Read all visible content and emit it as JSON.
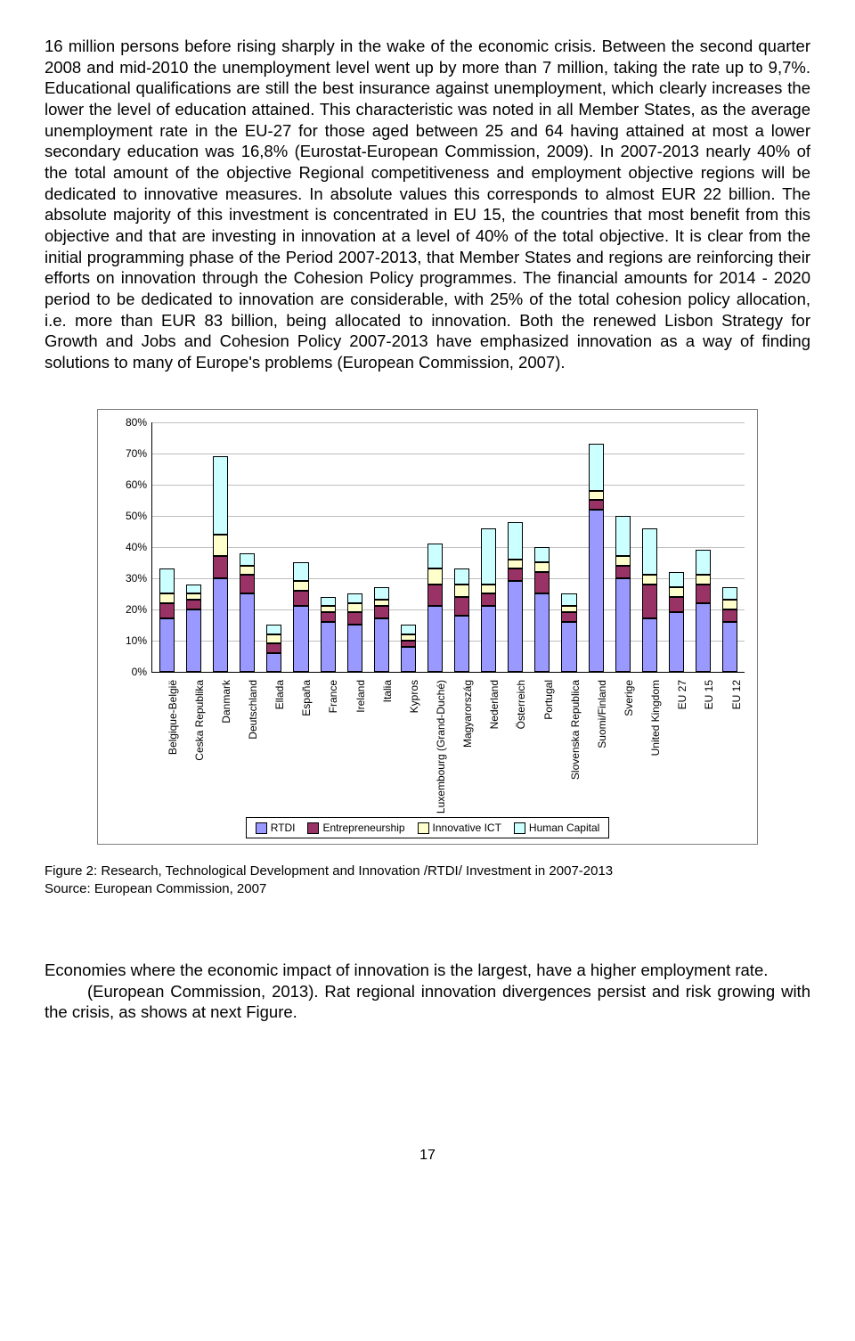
{
  "para1": "16 million persons before rising sharply in the wake of the economic crisis. Between the second quarter 2008 and mid-2010 the unemployment level went up by more than 7 million, taking the rate up to 9,7%. Educational qualifications are still the best insurance against unemployment, which clearly increases the lower the level of education attained. This characteristic was noted in all Member States, as the average unemployment rate in the EU-27 for those aged between 25 and 64 having attained at most a lower secondary education was 16,8% (Eurostat-European Commission, 2009). In 2007-2013 nearly 40% of the total amount of the objective Regional competitiveness and employment objective regions will be dedicated to innovative measures. In absolute values this corresponds to almost EUR 22 billion. The absolute majority of this investment is concentrated in EU 15, the countries that most benefit from this objective and that are investing in innovation at a level of 40% of the total objective. It is clear from the initial programming phase of the Period 2007-2013, that Member States and regions are reinforcing their efforts on innovation through the Cohesion Policy programmes. The financial amounts for 2014 - 2020 period to be dedicated to innovation are considerable, with 25% of the total cohesion policy allocation, i.e. more than EUR 83 billion, being allocated to innovation. Both the renewed Lisbon Strategy for Growth and Jobs and Cohesion Policy 2007-2013 have emphasized innovation as a way of finding solutions to many of Europe's problems (European Commission, 2007).",
  "caption1": "Figure 2: Research, Technological Development and Innovation /RTDI/ Investment in 2007-2013",
  "caption2": "Source: European Commission, 2007",
  "para2a": "Economies where the economic impact of innovation is the largest, have a higher employment rate.",
  "para2b": "(European Commission, 2013). Rat regional innovation divergences persist and risk growing with the crisis, as shows at next Figure.",
  "page_number": "17",
  "chart": {
    "type": "stacked-bar",
    "ymax": 80,
    "ytick_step": 10,
    "y_suffix": "%",
    "background_color": "#ffffff",
    "border_color": "#7f7f7f",
    "axis_color": "#000000",
    "label_fontsize": 12,
    "bar_border": "#000000",
    "series": [
      {
        "name": "RTDI",
        "color": "#9999ff"
      },
      {
        "name": "Entrepreneurship",
        "color": "#993366"
      },
      {
        "name": "Innovative ICT",
        "color": "#ffffcc"
      },
      {
        "name": "Human Capital",
        "color": "#ccffff"
      }
    ],
    "categories": [
      {
        "label": "Belgique-België",
        "values": [
          17,
          5,
          3,
          8
        ]
      },
      {
        "label": "Ceska Republika",
        "values": [
          20,
          3,
          2,
          3
        ]
      },
      {
        "label": "Danmark",
        "values": [
          30,
          7,
          7,
          25
        ]
      },
      {
        "label": "Deutschland",
        "values": [
          25,
          6,
          3,
          4
        ]
      },
      {
        "label": "Ellada",
        "values": [
          6,
          3,
          3,
          3
        ]
      },
      {
        "label": "España",
        "values": [
          21,
          5,
          3,
          6
        ]
      },
      {
        "label": "France",
        "values": [
          16,
          3,
          2,
          3
        ]
      },
      {
        "label": "Ireland",
        "values": [
          15,
          4,
          3,
          3
        ]
      },
      {
        "label": "Italia",
        "values": [
          17,
          4,
          2,
          4
        ]
      },
      {
        "label": "Kypros",
        "values": [
          8,
          2,
          2,
          3
        ]
      },
      {
        "label": "Luxembourg (Grand-Duché)",
        "values": [
          21,
          7,
          5,
          8
        ]
      },
      {
        "label": "Magyarország",
        "values": [
          18,
          6,
          4,
          5
        ]
      },
      {
        "label": "Nederland",
        "values": [
          21,
          4,
          3,
          18
        ]
      },
      {
        "label": "Österreich",
        "values": [
          29,
          4,
          3,
          12
        ]
      },
      {
        "label": "Portugal",
        "values": [
          25,
          7,
          3,
          5
        ]
      },
      {
        "label": "Slovenska Republica",
        "values": [
          16,
          3,
          2,
          4
        ]
      },
      {
        "label": "Suomi/Finland",
        "values": [
          52,
          3,
          3,
          15
        ]
      },
      {
        "label": "Sverige",
        "values": [
          30,
          4,
          3,
          13
        ]
      },
      {
        "label": "United Kingdom",
        "values": [
          17,
          11,
          3,
          15
        ]
      },
      {
        "label": "EU 27",
        "values": [
          19,
          5,
          3,
          5
        ]
      },
      {
        "label": "EU 15",
        "values": [
          22,
          6,
          3,
          8
        ]
      },
      {
        "label": "EU 12",
        "values": [
          16,
          4,
          3,
          4
        ]
      }
    ]
  }
}
